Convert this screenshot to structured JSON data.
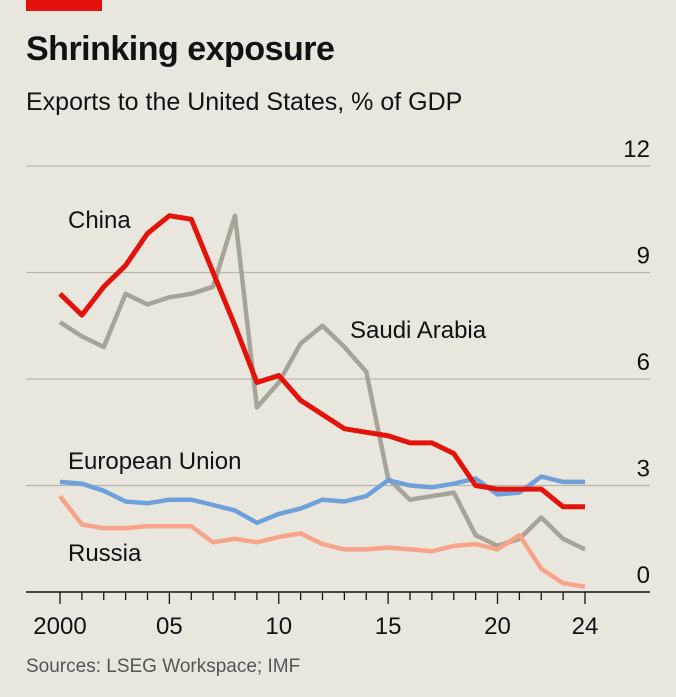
{
  "header": {
    "title": "Shrinking exposure",
    "subtitle": "Exports to the United States, % of GDP"
  },
  "footer": {
    "source": "Sources: LSEG Workspace; IMF"
  },
  "colors": {
    "china": "#e3120b",
    "saudi_arabia": "#a6a498",
    "european_union": "#6ea0dc",
    "russia": "#f7a48b",
    "grid": "#b7b6ae",
    "axis": "#121212"
  },
  "chart_data": {
    "type": "line",
    "title": "Shrinking exposure",
    "subtitle": "Exports to the United States, % of GDP",
    "xlabel": "",
    "ylabel": "",
    "xlim": [
      2000,
      2024
    ],
    "ylim": [
      0,
      12
    ],
    "y_ticks": [
      0,
      3,
      6,
      9,
      12
    ],
    "y_tick_labels": [
      "0",
      "3",
      "6",
      "9",
      "12"
    ],
    "x_ticks": [
      2000,
      2005,
      2010,
      2015,
      2020,
      2024
    ],
    "x_tick_labels": [
      "2000",
      "05",
      "10",
      "15",
      "20",
      "24"
    ],
    "y_axis_position": "right",
    "grid": true,
    "x": [
      2000,
      2001,
      2002,
      2003,
      2004,
      2005,
      2006,
      2007,
      2008,
      2009,
      2010,
      2011,
      2012,
      2013,
      2014,
      2015,
      2016,
      2017,
      2018,
      2019,
      2020,
      2021,
      2022,
      2023,
      2024
    ],
    "series": [
      {
        "name": "Saudi Arabia",
        "key": "saudi_arabia",
        "values": [
          7.6,
          7.2,
          6.9,
          8.4,
          8.1,
          8.3,
          8.4,
          8.6,
          10.6,
          5.2,
          5.9,
          7.0,
          7.5,
          6.9,
          6.2,
          3.2,
          2.6,
          2.7,
          2.8,
          1.6,
          1.3,
          1.5,
          2.1,
          1.5,
          1.2
        ]
      },
      {
        "name": "Russia",
        "key": "russia",
        "values": [
          2.7,
          1.9,
          1.8,
          1.8,
          1.85,
          1.85,
          1.85,
          1.4,
          1.5,
          1.4,
          1.55,
          1.65,
          1.35,
          1.2,
          1.2,
          1.25,
          1.2,
          1.15,
          1.3,
          1.35,
          1.2,
          1.6,
          0.65,
          0.25,
          0.15
        ]
      },
      {
        "name": "European Union",
        "key": "european_union",
        "values": [
          3.1,
          3.05,
          2.85,
          2.55,
          2.5,
          2.6,
          2.6,
          2.45,
          2.3,
          1.95,
          2.2,
          2.35,
          2.6,
          2.55,
          2.7,
          3.15,
          3.0,
          2.95,
          3.05,
          3.2,
          2.75,
          2.8,
          3.25,
          3.1,
          3.1
        ]
      },
      {
        "name": "China",
        "key": "china",
        "values": [
          8.4,
          7.8,
          8.6,
          9.2,
          10.1,
          10.6,
          10.5,
          9.0,
          7.5,
          5.9,
          6.1,
          5.4,
          5.0,
          4.6,
          4.5,
          4.4,
          4.2,
          4.2,
          3.9,
          3.0,
          2.9,
          2.9,
          2.9,
          2.4,
          2.4
        ]
      }
    ]
  }
}
